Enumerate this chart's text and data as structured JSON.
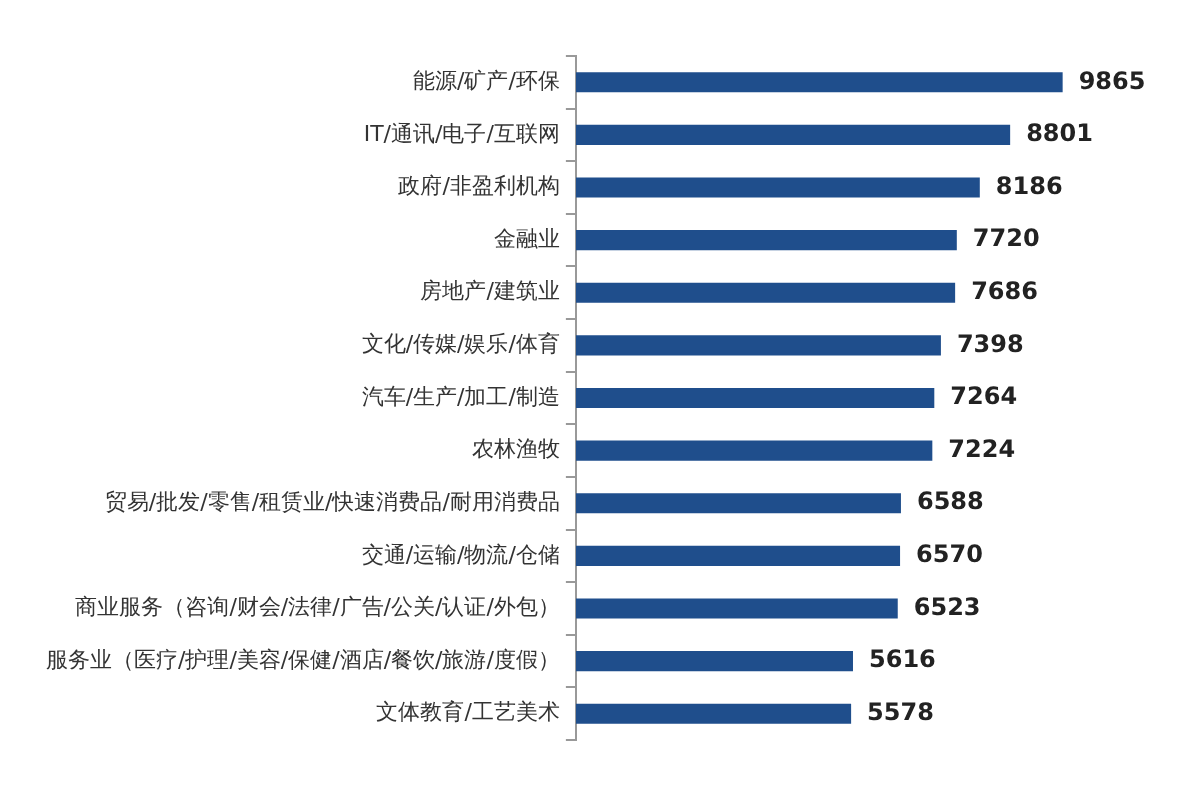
{
  "chart_data": {
    "type": "bar",
    "orientation": "horizontal",
    "categories": [
      "能源/矿产/环保",
      "IT/通讯/电子/互联网",
      "政府/非盈利机构",
      "金融业",
      "房地产/建筑业",
      "文化/传媒/娱乐/体育",
      "汽车/生产/加工/制造",
      "农林渔牧",
      "贸易/批发/零售/租赁业/快速消费品/耐用消费品",
      "交通/运输/物流/仓储",
      "商业服务（咨询/财会/法律/广告/公关/认证/外包）",
      "服务业（医疗/护理/美容/保健/酒店/餐饮/旅游/度假）",
      "文体教育/工艺美术"
    ],
    "values": [
      9865,
      8801,
      8186,
      7720,
      7686,
      7398,
      7264,
      7224,
      6588,
      6570,
      6523,
      5616,
      5578
    ],
    "color": "#1f4e8c",
    "data_labels": true,
    "legend": false
  }
}
